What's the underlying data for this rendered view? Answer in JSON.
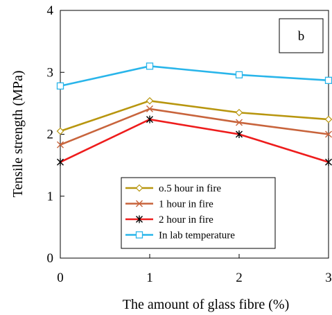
{
  "chart_data": {
    "type": "line",
    "panel_label": "b",
    "xlabel": "The amount of glass fibre (%)",
    "ylabel": "Tensile strength (MPa)",
    "x": [
      0,
      1,
      2,
      3
    ],
    "xlim": [
      0,
      3
    ],
    "ylim": [
      0,
      4
    ],
    "xticks": [
      "0",
      "1",
      "2",
      "3"
    ],
    "yticks": [
      "0",
      "1",
      "2",
      "3",
      "4"
    ],
    "grid": false,
    "legend_position": "bottom-right",
    "series": [
      {
        "name": "o.5 hour in fire",
        "values": [
          2.05,
          2.54,
          2.35,
          2.24
        ],
        "color": "#b8960f",
        "marker": "diamond"
      },
      {
        "name": "1 hour in fire",
        "values": [
          1.83,
          2.41,
          2.19,
          2.0
        ],
        "color": "#c8643c",
        "marker": "x"
      },
      {
        "name": "2 hour in fire",
        "values": [
          1.55,
          2.24,
          2.0,
          1.55
        ],
        "color": "#ee1c1c",
        "marker": "star"
      },
      {
        "name": "In lab temperature",
        "values": [
          2.78,
          3.1,
          2.96,
          2.87
        ],
        "color": "#29b5ea",
        "marker": "square"
      }
    ]
  }
}
